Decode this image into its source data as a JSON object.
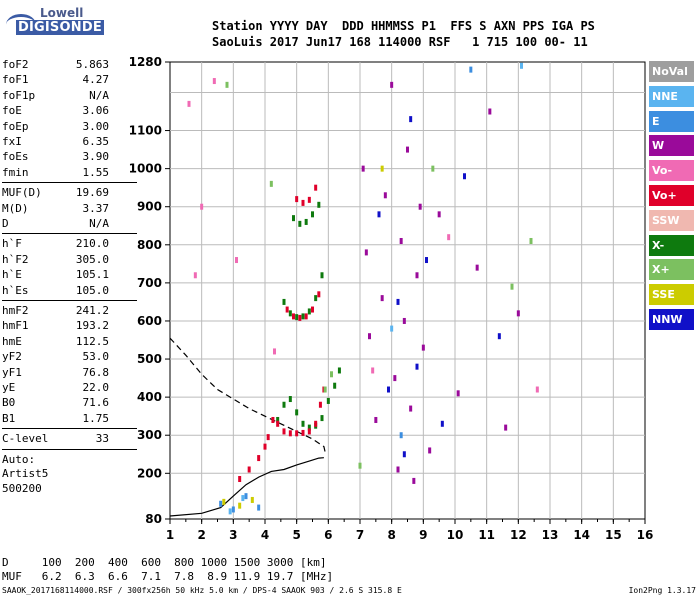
{
  "logo": {
    "line1": "Lowell",
    "line2": "DIGISONDE"
  },
  "header": {
    "line1": "Station YYYY DAY  DDD HHMMSS P1  FFS S AXN PPS IGA PS",
    "line2": "SaoLuis 2017 Jun17 168 114000 RSF   1 715 100 00- 11"
  },
  "params": [
    {
      "k": "foF2",
      "v": "5.863"
    },
    {
      "k": "foF1",
      "v": "4.27"
    },
    {
      "k": "foF1p",
      "v": "N/A"
    },
    {
      "k": "foE",
      "v": "3.06"
    },
    {
      "k": "foEp",
      "v": "3.00"
    },
    {
      "k": "fxI",
      "v": "6.35"
    },
    {
      "k": "foEs",
      "v": "3.90"
    },
    {
      "k": "fmin",
      "v": "1.55"
    },
    {
      "k": "MUF(D)",
      "v": "19.69"
    },
    {
      "k": "M(D)",
      "v": "3.37"
    },
    {
      "k": "D",
      "v": "N/A"
    },
    {
      "k": "h`F",
      "v": "210.0"
    },
    {
      "k": "h`F2",
      "v": "305.0"
    },
    {
      "k": "h`E",
      "v": "105.1"
    },
    {
      "k": "h`Es",
      "v": "105.0"
    },
    {
      "k": "hmF2",
      "v": "241.2"
    },
    {
      "k": "hmF1",
      "v": "193.2"
    },
    {
      "k": "hmE",
      "v": "112.5"
    },
    {
      "k": "yF2",
      "v": "53.0"
    },
    {
      "k": "yF1",
      "v": "76.8"
    },
    {
      "k": "yE",
      "v": "22.0"
    },
    {
      "k": "B0",
      "v": "71.6"
    },
    {
      "k": "B1",
      "v": "1.75"
    },
    {
      "k": "C-level",
      "v": "33"
    },
    {
      "k": "Auto:",
      "v": ""
    },
    {
      "k": "Artist5",
      "v": ""
    },
    {
      "k": "500200",
      "v": ""
    }
  ],
  "legend": [
    {
      "label": "NoVal",
      "color": "#9e9e9e"
    },
    {
      "label": "NNE",
      "color": "#5ab4f0"
    },
    {
      "label": "E",
      "color": "#3c8ee0"
    },
    {
      "label": "W",
      "color": "#9a0a9a"
    },
    {
      "label": "Vo-",
      "color": "#f06ab4"
    },
    {
      "label": "Vo+",
      "color": "#e0002a"
    },
    {
      "label": "SSW",
      "color": "#f0b8b0"
    },
    {
      "label": "X-",
      "color": "#0e7a0e"
    },
    {
      "label": "X+",
      "color": "#7cc060"
    },
    {
      "label": "SSE",
      "color": "#cccc00"
    },
    {
      "label": "NNW",
      "color": "#1010c8"
    }
  ],
  "bottom": {
    "line1": "D     100  200  400  600  800 1000 1500 3000 [km]",
    "line2": "MUF   6.2  6.3  6.6  7.1  7.8  8.9 11.9 19.7 [MHz]"
  },
  "footer": "SAAOK_2017168114000.RSF / 300fx256h 50 kHz 5.0 km / DPS-4 SAAOK 903 / 2.6 S 315.8 E",
  "version": "Ion2Png 1.3.17",
  "chart_data": {
    "type": "scatter",
    "xlim": [
      1,
      16
    ],
    "ylim": [
      80,
      1280
    ],
    "x_ticks": [
      1,
      2,
      3,
      4,
      5,
      6,
      7,
      8,
      9,
      10,
      11,
      12,
      13,
      14,
      15,
      16
    ],
    "y_ticks": [
      80,
      200,
      300,
      400,
      500,
      600,
      700,
      800,
      900,
      1000,
      1100,
      1280
    ],
    "grid": true,
    "series": [
      {
        "name": "X-",
        "color": "#0e7a0e",
        "points": [
          [
            4.4,
            340
          ],
          [
            4.6,
            380
          ],
          [
            4.8,
            395
          ],
          [
            5.0,
            360
          ],
          [
            5.2,
            330
          ],
          [
            5.4,
            320
          ],
          [
            5.6,
            325
          ],
          [
            5.8,
            345
          ],
          [
            6.0,
            390
          ],
          [
            6.2,
            430
          ],
          [
            6.35,
            470
          ],
          [
            4.6,
            650
          ],
          [
            4.8,
            620
          ],
          [
            5.0,
            610
          ],
          [
            5.2,
            612
          ],
          [
            5.4,
            625
          ],
          [
            5.6,
            660
          ],
          [
            5.8,
            720
          ],
          [
            4.9,
            870
          ],
          [
            5.1,
            855
          ],
          [
            5.3,
            860
          ],
          [
            5.5,
            880
          ],
          [
            5.7,
            905
          ]
        ]
      },
      {
        "name": "Vo+",
        "color": "#e0002a",
        "points": [
          [
            3.2,
            185
          ],
          [
            3.5,
            210
          ],
          [
            3.8,
            240
          ],
          [
            4.0,
            270
          ],
          [
            4.1,
            295
          ],
          [
            4.25,
            340
          ],
          [
            4.4,
            330
          ],
          [
            4.6,
            310
          ],
          [
            4.8,
            305
          ],
          [
            5.0,
            305
          ],
          [
            5.2,
            306
          ],
          [
            5.4,
            310
          ],
          [
            5.6,
            330
          ],
          [
            5.75,
            380
          ],
          [
            5.86,
            420
          ],
          [
            4.7,
            630
          ],
          [
            4.9,
            612
          ],
          [
            5.1,
            608
          ],
          [
            5.3,
            612
          ],
          [
            5.5,
            630
          ],
          [
            5.7,
            670
          ],
          [
            5.0,
            920
          ],
          [
            5.2,
            910
          ],
          [
            5.4,
            918
          ],
          [
            5.6,
            950
          ]
        ]
      },
      {
        "name": "W",
        "color": "#9a0a9a",
        "points": [
          [
            7.1,
            1000
          ],
          [
            7.2,
            780
          ],
          [
            7.3,
            560
          ],
          [
            7.5,
            340
          ],
          [
            7.7,
            660
          ],
          [
            7.8,
            930
          ],
          [
            8.0,
            1220
          ],
          [
            8.1,
            450
          ],
          [
            8.2,
            210
          ],
          [
            8.3,
            810
          ],
          [
            8.4,
            600
          ],
          [
            8.5,
            1050
          ],
          [
            8.6,
            370
          ],
          [
            8.7,
            180
          ],
          [
            8.8,
            720
          ],
          [
            8.9,
            900
          ],
          [
            9.0,
            530
          ],
          [
            9.2,
            260
          ],
          [
            9.5,
            880
          ],
          [
            10.1,
            410
          ],
          [
            10.7,
            740
          ],
          [
            11.1,
            1150
          ],
          [
            11.6,
            320
          ],
          [
            12.0,
            620
          ]
        ]
      },
      {
        "name": "NNW",
        "color": "#1010c8",
        "points": [
          [
            7.6,
            880
          ],
          [
            7.9,
            420
          ],
          [
            8.2,
            650
          ],
          [
            8.4,
            250
          ],
          [
            8.6,
            1130
          ],
          [
            8.8,
            480
          ],
          [
            9.1,
            760
          ],
          [
            9.6,
            330
          ],
          [
            10.3,
            980
          ],
          [
            11.4,
            560
          ]
        ]
      },
      {
        "name": "Vo-",
        "color": "#f06ab4",
        "points": [
          [
            1.6,
            1170
          ],
          [
            1.8,
            720
          ],
          [
            2.0,
            900
          ],
          [
            2.4,
            1230
          ],
          [
            3.1,
            760
          ],
          [
            4.3,
            520
          ],
          [
            7.4,
            470
          ],
          [
            9.8,
            820
          ],
          [
            12.6,
            420
          ]
        ]
      },
      {
        "name": "X+",
        "color": "#7cc060",
        "points": [
          [
            2.8,
            1220
          ],
          [
            4.2,
            960
          ],
          [
            5.9,
            420
          ],
          [
            6.1,
            460
          ],
          [
            7.0,
            220
          ],
          [
            9.3,
            1000
          ],
          [
            11.8,
            690
          ],
          [
            12.4,
            810
          ]
        ]
      },
      {
        "name": "E",
        "color": "#3c8ee0",
        "points": [
          [
            2.6,
            120
          ],
          [
            3.0,
            105
          ],
          [
            3.4,
            140
          ],
          [
            3.8,
            110
          ],
          [
            8.3,
            300
          ],
          [
            10.5,
            1260
          ]
        ]
      },
      {
        "name": "SSE",
        "color": "#cccc00",
        "points": [
          [
            2.7,
            125
          ],
          [
            3.2,
            115
          ],
          [
            3.6,
            130
          ],
          [
            7.7,
            1000
          ]
        ]
      },
      {
        "name": "NNE",
        "color": "#5ab4f0",
        "points": [
          [
            2.9,
            100
          ],
          [
            3.3,
            135
          ],
          [
            8.0,
            580
          ],
          [
            12.1,
            1270
          ]
        ]
      }
    ],
    "trace_lines": [
      {
        "name": "solid",
        "points": [
          [
            1.0,
            88
          ],
          [
            2.0,
            95
          ],
          [
            2.6,
            110
          ],
          [
            3.0,
            140
          ],
          [
            3.4,
            170
          ],
          [
            3.8,
            190
          ],
          [
            4.2,
            205
          ],
          [
            4.6,
            210
          ],
          [
            5.0,
            222
          ],
          [
            5.4,
            232
          ],
          [
            5.7,
            240
          ],
          [
            5.86,
            241
          ]
        ]
      },
      {
        "name": "dashed",
        "points": [
          [
            1.0,
            555
          ],
          [
            1.5,
            510
          ],
          [
            2.0,
            460
          ],
          [
            2.5,
            420
          ],
          [
            3.0,
            395
          ],
          [
            3.5,
            370
          ],
          [
            4.0,
            350
          ],
          [
            4.5,
            330
          ],
          [
            5.0,
            310
          ],
          [
            5.5,
            290
          ],
          [
            5.86,
            270
          ],
          [
            5.9,
            255
          ]
        ]
      }
    ]
  }
}
